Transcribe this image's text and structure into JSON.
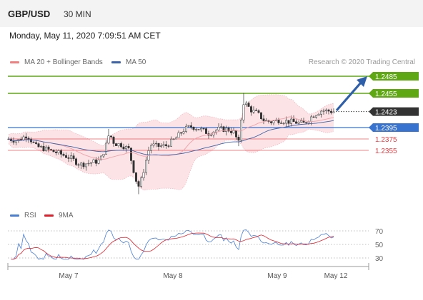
{
  "header": {
    "pair": "GBP/USD",
    "timeframe": "30 MIN"
  },
  "datetime": "Monday, May 11, 2020 7:09:51 AM CET",
  "credit": "Research © 2020 Trading Central",
  "colors": {
    "resistance": "#5fa813",
    "current": "#333333",
    "pivot": "#3773cf",
    "support": "#e84045",
    "rsi": "#4a7fd4",
    "ma9": "#e0202a",
    "bollinger": "#fadadd",
    "ma20": "#f2a0a8",
    "ma50": "#3e62a8"
  },
  "chart_data": [
    {
      "type": "candlestick",
      "legend": [
        {
          "name": "MA 20 + Bollinger Bands",
          "color": "#f08080"
        },
        {
          "name": "MA 50",
          "color": "#3e62a8"
        }
      ],
      "x_ticks": [
        "May 7",
        "May 8",
        "May 9",
        "May 12"
      ],
      "levels": [
        {
          "value": 1.2485,
          "label": "1.2485",
          "kind": "resistance"
        },
        {
          "value": 1.2455,
          "label": "1.2455",
          "kind": "resistance"
        },
        {
          "value": 1.2423,
          "label": "1.2423",
          "kind": "current"
        },
        {
          "value": 1.2395,
          "label": "1.2395",
          "kind": "pivot"
        },
        {
          "value": 1.2375,
          "label": "1.2375",
          "kind": "support"
        },
        {
          "value": 1.2355,
          "label": "1.2355",
          "kind": "support"
        }
      ],
      "y_range": [
        1.227,
        1.249
      ]
    },
    {
      "type": "line",
      "legend": [
        {
          "name": "RSI",
          "color": "#4a7fd4"
        },
        {
          "name": "9MA",
          "color": "#e0202a"
        }
      ],
      "y_ticks": [
        "70",
        "50",
        "30"
      ],
      "y_range": [
        20,
        80
      ],
      "guide_levels": [
        70,
        50,
        30
      ]
    }
  ]
}
